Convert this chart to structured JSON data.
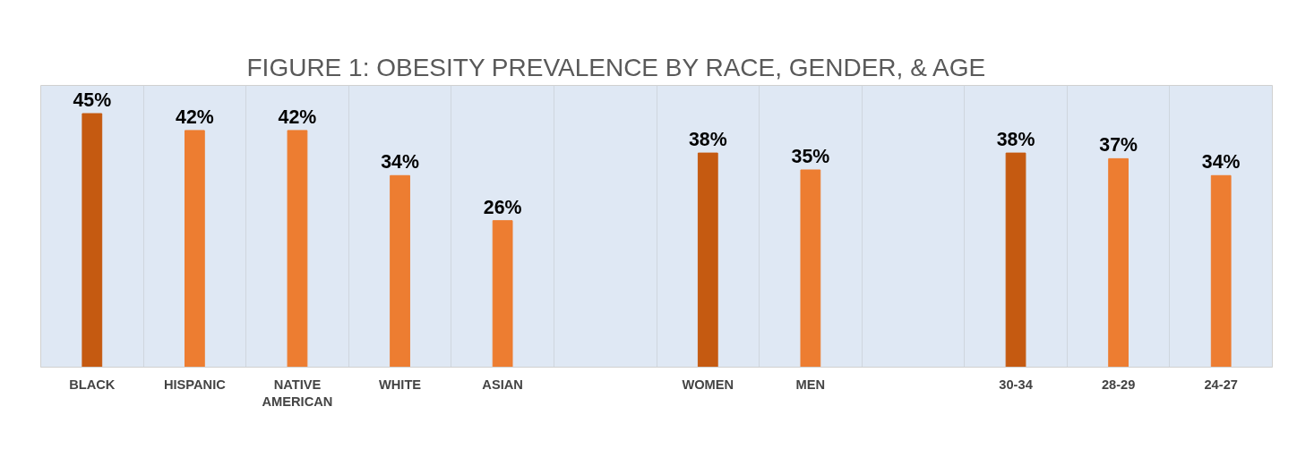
{
  "chart_data": {
    "type": "bar",
    "title": "FIGURE 1: OBESITY PREVALENCE BY RACE, GENDER, & AGE",
    "categories": [
      "BLACK",
      "HISPANIC",
      "NATIVE AMERICAN",
      "WHITE",
      "ASIAN",
      null,
      "WOMEN",
      "MEN",
      null,
      "30-34",
      "28-29",
      "24-27"
    ],
    "values": [
      45,
      42,
      42,
      34,
      26,
      null,
      38,
      35,
      null,
      38,
      37,
      34
    ],
    "value_labels": [
      "45%",
      "42%",
      "42%",
      "34%",
      "26%",
      null,
      "38%",
      "35%",
      null,
      "38%",
      "37%",
      "34%"
    ],
    "colors": [
      "#c55a11",
      "#ed7d31",
      "#ed7d31",
      "#ed7d31",
      "#ed7d31",
      null,
      "#c55a11",
      "#ed7d31",
      null,
      "#c55a11",
      "#ed7d31",
      "#ed7d31"
    ],
    "ylim": [
      0,
      50
    ],
    "grid": "x",
    "tick_labels": "x"
  }
}
